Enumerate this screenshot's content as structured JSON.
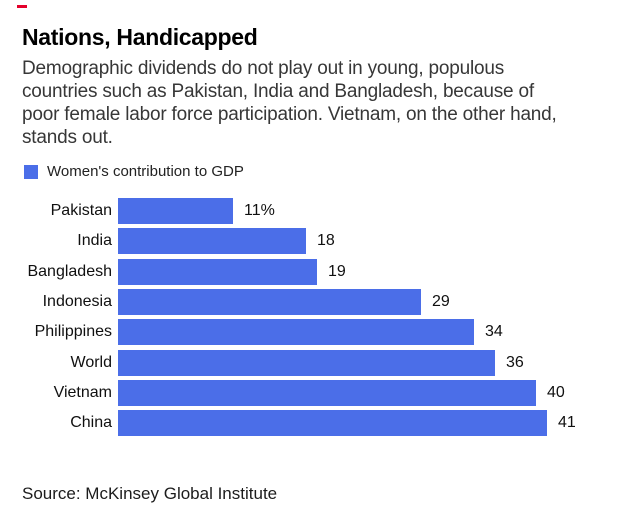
{
  "accent": {
    "dash_color": "#e4002b"
  },
  "header": {
    "title": "Nations, Handicapped",
    "subtitle_lines": [
      "Demographic dividends do not play out in young, populous",
      "countries such as Pakistan, India and Bangladesh, because of",
      "poor female labor force participation. Vietnam, on the other hand,",
      "stands out."
    ]
  },
  "legend": {
    "label": "Women's contribution to GDP",
    "swatch_color": "#4b6ee8"
  },
  "chart_data": {
    "type": "bar",
    "orientation": "horizontal",
    "title": "Nations, Handicapped",
    "series_name": "Women's contribution to GDP",
    "categories": [
      "Pakistan",
      "India",
      "Bangladesh",
      "Indonesia",
      "Philippines",
      "World",
      "Vietnam",
      "China"
    ],
    "values": [
      11,
      18,
      19,
      29,
      34,
      36,
      40,
      41
    ],
    "value_labels": [
      "11%",
      "18",
      "19",
      "29",
      "34",
      "36",
      "40",
      "41"
    ],
    "unit": "%",
    "xlim": [
      0,
      41
    ],
    "grid": false,
    "axes_shown": false,
    "legend_position": "top-left",
    "bar_color": "#4b6ee8"
  },
  "footer": {
    "source": "Source: McKinsey Global Institute"
  }
}
